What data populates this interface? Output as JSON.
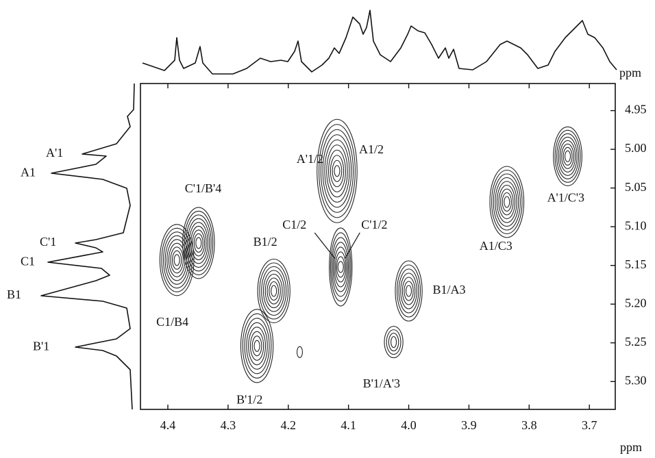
{
  "chart_data": {
    "type": "contour",
    "xlabel": "ppm",
    "ylabel": "ppm",
    "xlim": [
      4.4455,
      3.657
    ],
    "ylim": [
      4.915,
      5.336
    ],
    "xticks": [
      {
        "value": 4.4,
        "label": "4.4"
      },
      {
        "value": 4.3,
        "label": "4.3"
      },
      {
        "value": 4.2,
        "label": "4.2"
      },
      {
        "value": 4.1,
        "label": "4.1"
      },
      {
        "value": 4.0,
        "label": "4.0"
      },
      {
        "value": 3.9,
        "label": "3.9"
      },
      {
        "value": 3.8,
        "label": "3.8"
      },
      {
        "value": 3.7,
        "label": "3.7"
      }
    ],
    "yticks": [
      4.95,
      {
        "value": 5.0,
        "label": "5.00"
      },
      5.05,
      {
        "value": 5.1,
        "label": "5.10"
      },
      5.15,
      {
        "value": 5.2,
        "label": "5.20"
      },
      5.25,
      {
        "value": 5.3,
        "label": "5.30"
      }
    ],
    "color": "#222222",
    "cross_peaks": [
      {
        "label": "C1/B4",
        "x": 4.385,
        "y": 5.143
      },
      {
        "label": "C'1/B'4",
        "x": 4.349,
        "y": 5.121
      },
      {
        "label": "B1/2",
        "x": 4.224,
        "y": 5.183
      },
      {
        "label": "B'1/2",
        "x": 4.252,
        "y": 5.254
      },
      {
        "label": "A'1/2",
        "x": 4.119,
        "y": 5.028
      },
      {
        "label": "A1/2",
        "x": 4.119,
        "y": 5.028
      },
      {
        "label": "C1/2",
        "x": 4.113,
        "y": 5.152
      },
      {
        "label": "C'1/2",
        "x": 4.113,
        "y": 5.152
      },
      {
        "label": "B1/A3",
        "x": 4.0,
        "y": 5.183
      },
      {
        "label": "B'1/A'3",
        "x": 4.025,
        "y": 5.249
      },
      {
        "label": "A1/C3",
        "x": 3.837,
        "y": 5.068
      },
      {
        "label": "A'1/C'3",
        "x": 3.736,
        "y": 5.009
      },
      {
        "label": null,
        "x": 4.181,
        "y": 5.262
      }
    ],
    "projection_labels": [
      {
        "label": "A'1",
        "y": 5.006
      },
      {
        "label": "A1",
        "y": 5.031
      },
      {
        "label": "C'1",
        "y": 5.121
      },
      {
        "label": "C1",
        "y": 5.146
      },
      {
        "label": "B1",
        "y": 5.189
      },
      {
        "label": "B'1",
        "y": 5.256
      }
    ]
  }
}
